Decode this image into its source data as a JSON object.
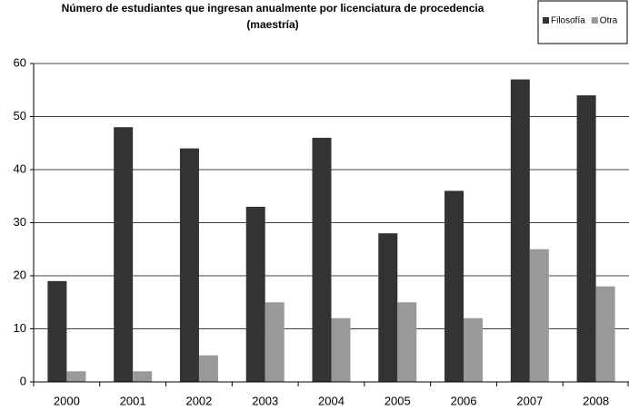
{
  "chart_data": {
    "type": "bar",
    "title": [
      "Número de estudiantes que ingresan anualmente por licenciatura de procedencia",
      "(maestría)"
    ],
    "categories": [
      "2000",
      "2001",
      "2002",
      "2003",
      "2004",
      "2005",
      "2006",
      "2007",
      "2008"
    ],
    "series": [
      {
        "name": "Filosofía",
        "color": "#333333",
        "values": [
          19,
          48,
          44,
          33,
          46,
          28,
          36,
          57,
          54
        ]
      },
      {
        "name": "Otra",
        "color": "#999999",
        "values": [
          2,
          2,
          5,
          15,
          12,
          15,
          12,
          25,
          18
        ]
      }
    ],
    "ylim": [
      0,
      60
    ],
    "yticks": [
      0,
      10,
      20,
      30,
      40,
      50,
      60
    ],
    "grid": true,
    "legend": "top-right"
  }
}
